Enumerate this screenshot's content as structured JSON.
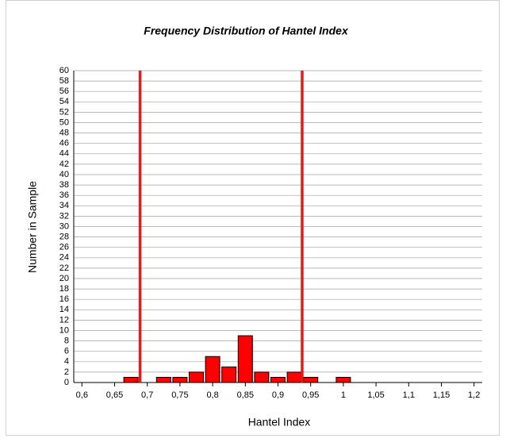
{
  "chart_data": {
    "type": "bar",
    "title": "Frequency Distribution of Hantel Index",
    "x_label": "Hantel Index",
    "y_label": "Number in Sample",
    "x": [
      0.675,
      0.725,
      0.75,
      0.775,
      0.8,
      0.825,
      0.85,
      0.875,
      0.9,
      0.925,
      0.95,
      1.0
    ],
    "values": [
      1,
      1,
      1,
      2,
      5,
      3,
      9,
      2,
      1,
      2,
      1,
      1
    ],
    "color": "#ff0000",
    "xlim": [
      0.5875,
      1.2125
    ],
    "xticks": [
      {
        "value": 0.6,
        "label": "0,6"
      },
      {
        "value": 0.65,
        "label": "0,65"
      },
      {
        "value": 0.7,
        "label": "0,7"
      },
      {
        "value": 0.75,
        "label": "0,75"
      },
      {
        "value": 0.8,
        "label": "0,8"
      },
      {
        "value": 0.85,
        "label": "0,85"
      },
      {
        "value": 0.9,
        "label": "0,9"
      },
      {
        "value": 0.95,
        "label": "0,95"
      },
      1,
      {
        "value": 1.05,
        "label": "1,05"
      },
      {
        "value": 1.1,
        "label": "1,1"
      },
      {
        "value": 1.15,
        "label": "1,15"
      },
      {
        "value": 1.2,
        "label": "1,2"
      }
    ],
    "ylim": [
      0,
      60
    ],
    "yticks": [
      0,
      2,
      4,
      6,
      8,
      10,
      12,
      14,
      16,
      18,
      20,
      22,
      24,
      26,
      28,
      30,
      32,
      34,
      36,
      38,
      40,
      42,
      44,
      46,
      48,
      50,
      52,
      54,
      56,
      58,
      60
    ],
    "grid": true,
    "vlines": [
      0.689,
      0.937
    ],
    "vline_color": "#e41a1c"
  }
}
